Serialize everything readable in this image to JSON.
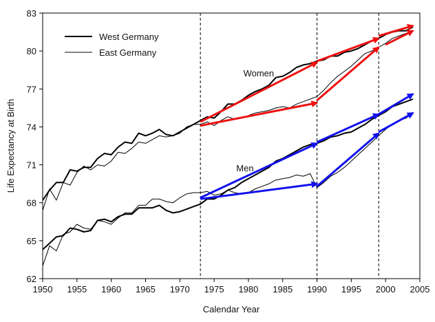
{
  "chart_data": {
    "type": "line",
    "title": "",
    "xlabel": "Calendar Year",
    "ylabel": "Life Expectancy at Birth",
    "xlim": [
      1950,
      2005
    ],
    "ylim": [
      62,
      83
    ],
    "xticks": [
      1950,
      1955,
      1960,
      1965,
      1970,
      1975,
      1980,
      1985,
      1990,
      1995,
      2000,
      2005
    ],
    "yticks": [
      62,
      65,
      68,
      71,
      74,
      77,
      80,
      83
    ],
    "grid": false,
    "legend_position": "top-left",
    "vertical_lines": [
      1973,
      1990,
      1999
    ],
    "annotations": [
      {
        "text": "Women",
        "x": 1981.5,
        "y": 78.0
      },
      {
        "text": "Men",
        "x": 1979.5,
        "y": 70.5
      }
    ],
    "series": [
      {
        "name": "West Germany",
        "group": "Women",
        "style": "thick",
        "x": [
          1950,
          1951,
          1952,
          1953,
          1954,
          1955,
          1956,
          1957,
          1958,
          1959,
          1960,
          1961,
          1962,
          1963,
          1964,
          1965,
          1966,
          1967,
          1968,
          1969,
          1970,
          1971,
          1972,
          1973,
          1974,
          1975,
          1976,
          1977,
          1978,
          1979,
          1980,
          1981,
          1982,
          1983,
          1984,
          1985,
          1986,
          1987,
          1988,
          1989,
          1990,
          1991,
          1992,
          1993,
          1994,
          1995,
          1996,
          1997,
          1998,
          1999,
          2000,
          2001,
          2002,
          2003,
          2004
        ],
        "y": [
          68.2,
          69.0,
          69.6,
          69.6,
          70.6,
          70.5,
          70.8,
          70.8,
          71.5,
          71.9,
          71.8,
          72.4,
          72.8,
          72.7,
          73.5,
          73.3,
          73.5,
          73.8,
          73.4,
          73.3,
          73.6,
          73.9,
          74.2,
          74.5,
          74.8,
          74.7,
          75.2,
          75.8,
          75.8,
          76.1,
          76.5,
          76.8,
          77.0,
          77.3,
          77.9,
          78.0,
          78.3,
          78.7,
          78.9,
          79.0,
          79.2,
          79.3,
          79.6,
          79.6,
          79.9,
          80.0,
          80.2,
          80.5,
          80.8,
          81.0,
          81.3,
          81.5,
          81.6,
          81.6,
          81.9
        ]
      },
      {
        "name": "East Germany",
        "group": "Women",
        "style": "thin",
        "x": [
          1950,
          1951,
          1952,
          1953,
          1954,
          1955,
          1956,
          1957,
          1958,
          1959,
          1960,
          1961,
          1962,
          1963,
          1964,
          1965,
          1966,
          1967,
          1968,
          1969,
          1970,
          1971,
          1972,
          1973,
          1974,
          1975,
          1976,
          1977,
          1978,
          1979,
          1980,
          1981,
          1982,
          1983,
          1984,
          1985,
          1986,
          1987,
          1988,
          1989,
          1990,
          1991,
          1992,
          1993,
          1994,
          1995,
          1996,
          1997,
          1998,
          1999,
          2000,
          2001,
          2002,
          2003,
          2004
        ],
        "y": [
          67.4,
          69.1,
          68.2,
          69.6,
          69.4,
          70.4,
          70.9,
          70.6,
          71.0,
          70.9,
          71.3,
          72.0,
          71.9,
          72.3,
          72.8,
          72.7,
          73.0,
          73.3,
          73.2,
          73.3,
          73.5,
          74.0,
          74.2,
          74.2,
          74.4,
          74.1,
          74.5,
          74.8,
          74.6,
          74.7,
          74.9,
          75.1,
          75.2,
          75.3,
          75.5,
          75.6,
          75.5,
          75.8,
          76.0,
          76.2,
          76.4,
          76.9,
          77.5,
          78.0,
          78.4,
          78.8,
          79.3,
          79.8,
          80.0,
          80.3,
          80.6,
          81.0,
          81.2,
          81.4,
          81.6
        ]
      },
      {
        "name": "West Germany",
        "group": "Men",
        "style": "thick",
        "x": [
          1950,
          1951,
          1952,
          1953,
          1954,
          1955,
          1956,
          1957,
          1958,
          1959,
          1960,
          1961,
          1962,
          1963,
          1964,
          1965,
          1966,
          1967,
          1968,
          1969,
          1970,
          1971,
          1972,
          1973,
          1974,
          1975,
          1976,
          1977,
          1978,
          1979,
          1980,
          1981,
          1982,
          1983,
          1984,
          1985,
          1986,
          1987,
          1988,
          1989,
          1990,
          1991,
          1992,
          1993,
          1994,
          1995,
          1996,
          1997,
          1998,
          1999,
          2000,
          2001,
          2002,
          2003,
          2004
        ],
        "y": [
          64.3,
          64.8,
          65.3,
          65.4,
          66.0,
          65.9,
          65.7,
          65.8,
          66.6,
          66.7,
          66.5,
          66.9,
          67.1,
          67.1,
          67.6,
          67.6,
          67.6,
          67.8,
          67.4,
          67.2,
          67.3,
          67.5,
          67.7,
          67.9,
          68.3,
          68.3,
          68.6,
          69.0,
          69.2,
          69.6,
          69.9,
          70.2,
          70.5,
          70.8,
          71.3,
          71.5,
          71.8,
          72.1,
          72.4,
          72.6,
          72.7,
          72.9,
          73.2,
          73.3,
          73.5,
          73.6,
          73.9,
          74.2,
          74.6,
          74.9,
          75.2,
          75.6,
          75.8,
          76.0,
          76.2
        ]
      },
      {
        "name": "East Germany",
        "group": "Men",
        "style": "thin",
        "x": [
          1950,
          1951,
          1952,
          1953,
          1954,
          1955,
          1956,
          1957,
          1958,
          1959,
          1960,
          1961,
          1962,
          1963,
          1964,
          1965,
          1966,
          1967,
          1968,
          1969,
          1970,
          1971,
          1972,
          1973,
          1974,
          1975,
          1976,
          1977,
          1978,
          1979,
          1980,
          1981,
          1982,
          1983,
          1984,
          1985,
          1986,
          1987,
          1988,
          1989,
          1990,
          1991,
          1992,
          1993,
          1994,
          1995,
          1996,
          1997,
          1998,
          1999,
          2000,
          2001,
          2002,
          2003,
          2004
        ],
        "y": [
          63.0,
          64.6,
          64.2,
          65.5,
          65.7,
          66.3,
          66.0,
          65.9,
          66.6,
          66.5,
          66.3,
          66.8,
          67.2,
          67.2,
          67.8,
          67.8,
          68.3,
          68.3,
          68.1,
          68.0,
          68.4,
          68.7,
          68.8,
          68.8,
          68.9,
          68.6,
          68.7,
          69.0,
          68.8,
          68.7,
          68.8,
          69.1,
          69.3,
          69.5,
          69.8,
          69.9,
          70.0,
          70.2,
          70.1,
          70.3,
          69.2,
          69.6,
          70.1,
          70.4,
          70.8,
          71.3,
          71.8,
          72.3,
          72.8,
          73.3,
          73.8,
          74.2,
          74.5,
          74.7,
          75.1
        ]
      }
    ],
    "trend_arrows": [
      {
        "group": "Women",
        "from": [
          1973,
          74.1
        ],
        "to": [
          1990,
          75.9
        ]
      },
      {
        "group": "Women",
        "from": [
          1973,
          74.4
        ],
        "to": [
          1990,
          79.1
        ]
      },
      {
        "group": "Women",
        "from": [
          1990,
          76.1
        ],
        "to": [
          1999,
          80.3
        ]
      },
      {
        "group": "Women",
        "from": [
          1990,
          79.2
        ],
        "to": [
          1999,
          81.0
        ]
      },
      {
        "group": "Women",
        "from": [
          2000,
          80.5
        ],
        "to": [
          2004,
          81.6
        ]
      },
      {
        "group": "Women",
        "from": [
          1999,
          81.2
        ],
        "to": [
          2004,
          82.0
        ]
      },
      {
        "group": "Men",
        "from": [
          1973,
          68.3
        ],
        "to": [
          1990,
          69.5
        ]
      },
      {
        "group": "Men",
        "from": [
          1973,
          68.4
        ],
        "to": [
          1990,
          72.7
        ]
      },
      {
        "group": "Men",
        "from": [
          1990,
          69.3
        ],
        "to": [
          1999,
          73.5
        ]
      },
      {
        "group": "Men",
        "from": [
          1990,
          72.8
        ],
        "to": [
          1999,
          75.0
        ]
      },
      {
        "group": "Men",
        "from": [
          1999,
          73.6
        ],
        "to": [
          2004,
          75.1
        ]
      },
      {
        "group": "Men",
        "from": [
          1999,
          75.0
        ],
        "to": [
          2004,
          76.6
        ]
      }
    ],
    "colors": {
      "Women": "#ee1111",
      "Men": "#1111ee",
      "lines": "#000000"
    }
  }
}
